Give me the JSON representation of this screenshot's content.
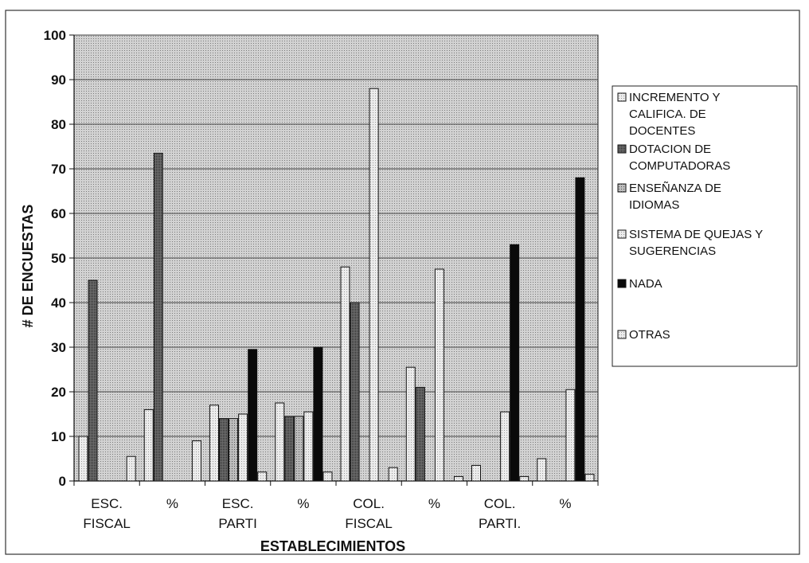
{
  "chart_data": {
    "type": "bar",
    "title": "",
    "xlabel": "ESTABLECIMIENTOS",
    "ylabel": "# DE ENCUESTAS",
    "ylim": [
      0,
      100
    ],
    "yticks": [
      "0",
      "10",
      "20",
      "30",
      "40",
      "50",
      "60",
      "70",
      "80",
      "90",
      "100"
    ],
    "grid": true,
    "legend_position": "right",
    "categories": [
      [
        "ESC.",
        "FISCAL"
      ],
      [
        "%"
      ],
      [
        "ESC.",
        "PARTI"
      ],
      [
        "%"
      ],
      [
        "COL.",
        "FISCAL"
      ],
      [
        "%"
      ],
      [
        "COL.",
        "PARTI."
      ],
      [
        "%"
      ]
    ],
    "series": [
      {
        "name": "INCREMENTO Y CALIFICA. DE DOCENTES",
        "legend_lines": [
          "INCREMENTO Y",
          "CALIFICA. DE",
          "DOCENTES"
        ],
        "pattern": "light",
        "values": [
          10,
          16,
          17,
          17.5,
          48,
          25.5,
          3.5,
          5
        ]
      },
      {
        "name": "DOTACION DE COMPUTADORAS",
        "legend_lines": [
          "DOTACION DE",
          "COMPUTADORAS"
        ],
        "pattern": "dark",
        "values": [
          45,
          73.5,
          14,
          14.5,
          40,
          21,
          0,
          0
        ]
      },
      {
        "name": "ENSEÑANZA DE IDIOMAS",
        "legend_lines": [
          "ENSEÑANZA DE",
          "IDIOMAS"
        ],
        "pattern": "medium",
        "values": [
          0,
          0,
          14,
          14.5,
          0,
          0,
          0,
          0
        ]
      },
      {
        "name": "SISTEMA DE QUEJAS Y SUGERENCIAS",
        "legend_lines": [
          "SISTEMA DE QUEJAS Y",
          "SUGERENCIAS"
        ],
        "pattern": "light",
        "values": [
          0,
          0,
          15,
          15.5,
          88,
          47.5,
          15.5,
          20.5
        ]
      },
      {
        "name": "NADA",
        "legend_lines": [
          "NADA"
        ],
        "pattern": "black",
        "values": [
          0,
          0,
          29.5,
          30,
          0,
          0,
          53,
          68
        ]
      },
      {
        "name": "OTRAS",
        "legend_lines": [
          "OTRAS"
        ],
        "pattern": "light",
        "values": [
          5.5,
          9,
          2,
          2,
          3,
          1,
          1,
          1.5
        ]
      }
    ]
  }
}
